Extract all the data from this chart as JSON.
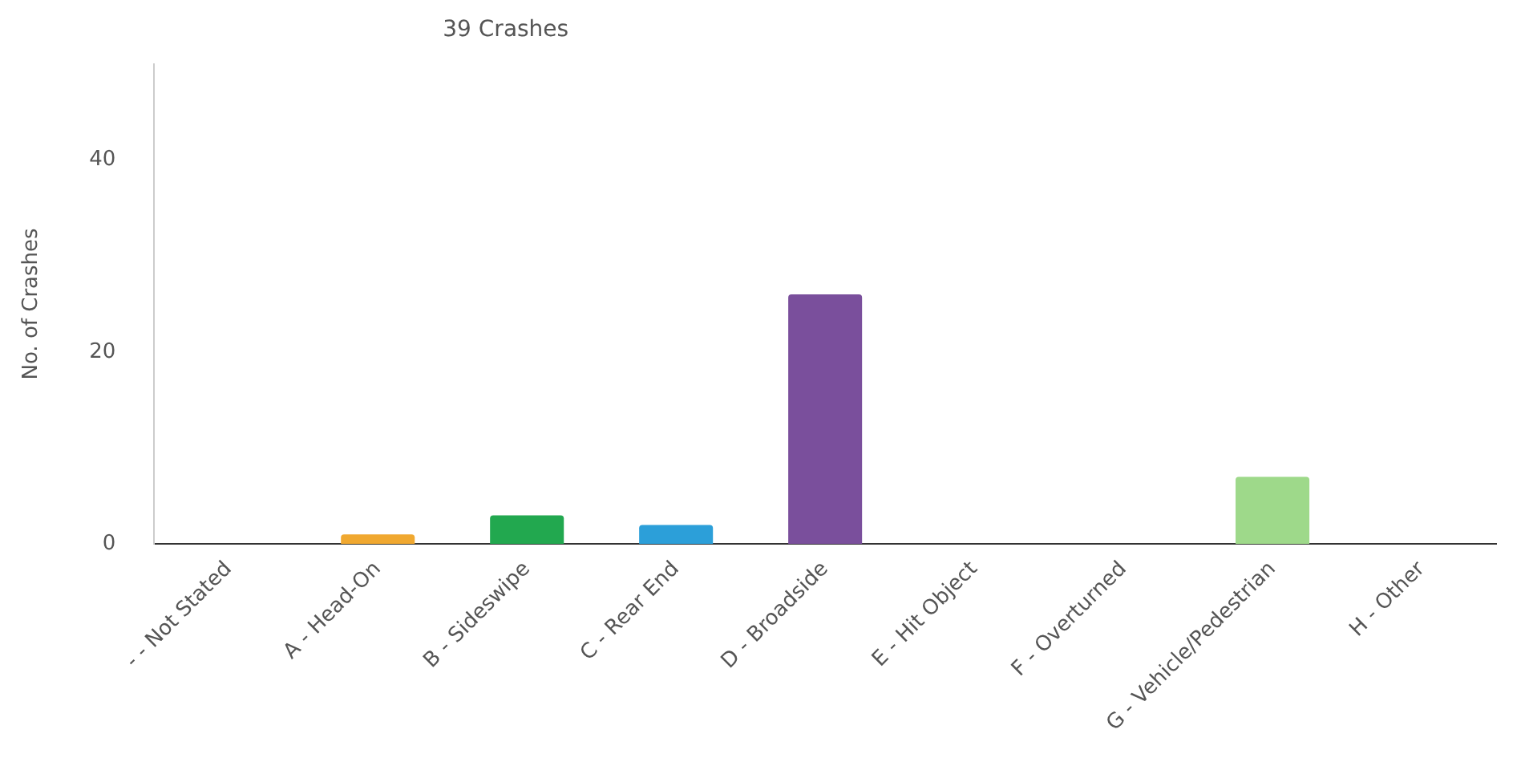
{
  "chart_data": {
    "type": "bar",
    "title": "39 Crashes",
    "ylabel": "No. of Crashes",
    "categories": [
      "- - Not Stated",
      "A - Head-On",
      "B - Sideswipe",
      "C - Rear End",
      "D - Broadside",
      "E - Hit Object",
      "F - Overturned",
      "G - Vehicle/Pedestrian",
      "H - Other"
    ],
    "values": [
      0,
      1,
      3,
      2,
      26,
      0,
      0,
      7,
      0
    ],
    "colors": [
      "#999999",
      "#f0a830",
      "#22a84f",
      "#2c9fd9",
      "#7a4f9c",
      "#888888",
      "#888888",
      "#9ed98a",
      "#aaaaaa"
    ],
    "ylim": [
      0,
      50
    ],
    "yticks": [
      0,
      20,
      40
    ],
    "grid": false,
    "legend": false
  }
}
